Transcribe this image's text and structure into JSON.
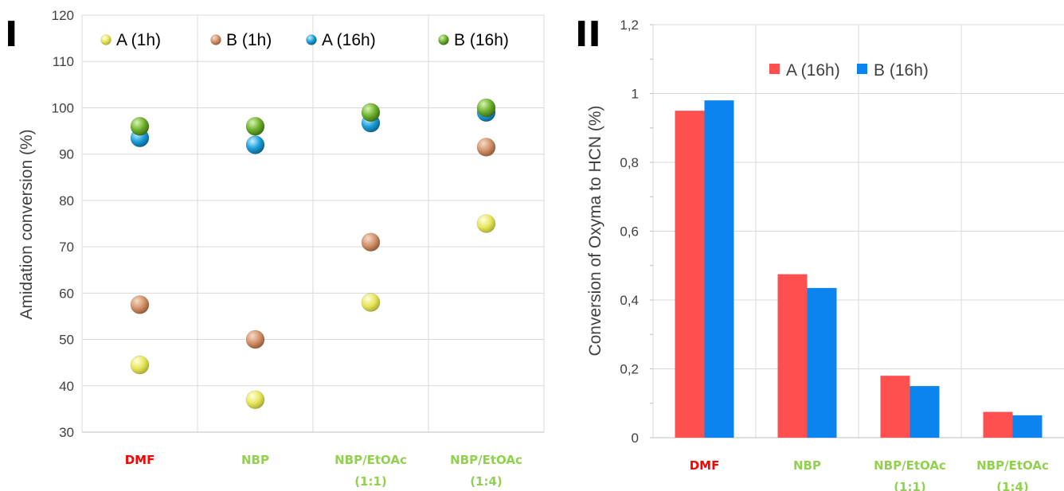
{
  "colors": {
    "grid": "#d9d9d9",
    "axis_text": "#404040",
    "cat_red": "#ff0000",
    "cat_green": "#92d050",
    "series_A_1h": "#e6e65a",
    "series_B_1h": "#d2916a",
    "series_A_16h": "#1a9ed9",
    "series_B_16h": "#6bb02c",
    "bar_A": "#ff5050",
    "bar_B": "#0b84f0"
  },
  "chart_data": [
    {
      "panel_label": "I",
      "type": "scatter",
      "ylabel": "Amidation conversion (%)",
      "ylim": [
        30,
        120
      ],
      "yticks": [
        30,
        40,
        50,
        60,
        70,
        80,
        90,
        100,
        110,
        120
      ],
      "ytick_labels": [
        "30",
        "40",
        "50",
        "60",
        "70",
        "80",
        "90",
        "100",
        "110",
        "120"
      ],
      "categories": [
        {
          "lines": [
            "DMF"
          ],
          "color": "red"
        },
        {
          "lines": [
            "NBP"
          ],
          "color": "green"
        },
        {
          "lines": [
            "NBP/EtOAc",
            "(1:1)"
          ],
          "color": "green"
        },
        {
          "lines": [
            "NBP/EtOAc",
            "(1:4)"
          ],
          "color": "green"
        }
      ],
      "legend_position": "top",
      "grid": true,
      "series": [
        {
          "name": "A (1h)",
          "values": [
            44.5,
            37,
            58,
            75
          ]
        },
        {
          "name": "B (1h)",
          "values": [
            57.5,
            50,
            71,
            91.5
          ]
        },
        {
          "name": "A (16h)",
          "values": [
            93.5,
            92,
            96.7,
            99
          ]
        },
        {
          "name": "B (16h)",
          "values": [
            96,
            96,
            99,
            100
          ]
        }
      ]
    },
    {
      "panel_label": "II",
      "type": "bar",
      "ylabel": "Conversion of Oxyma to HCN (%)",
      "ylim": [
        0,
        1.2
      ],
      "yticks": [
        0,
        0.2,
        0.4,
        0.6,
        0.8,
        1,
        1.2
      ],
      "ytick_labels": [
        "0",
        "0,2",
        "0,4",
        "0,6",
        "0,8",
        "1",
        "1,2"
      ],
      "categories": [
        {
          "lines": [
            "DMF"
          ],
          "color": "red"
        },
        {
          "lines": [
            "NBP"
          ],
          "color": "green"
        },
        {
          "lines": [
            "NBP/EtOAc",
            "(1:1)"
          ],
          "color": "green"
        },
        {
          "lines": [
            "NBP/EtOAc",
            "(1:4)"
          ],
          "color": "green"
        }
      ],
      "legend_position": "top",
      "grid": true,
      "series": [
        {
          "name": "A (16h)",
          "values": [
            0.95,
            0.475,
            0.18,
            0.075
          ]
        },
        {
          "name": "B (16h)",
          "values": [
            0.98,
            0.435,
            0.15,
            0.065
          ]
        }
      ]
    }
  ]
}
